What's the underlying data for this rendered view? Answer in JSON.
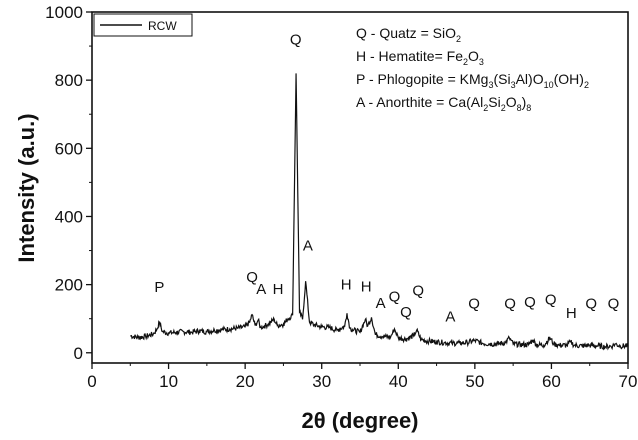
{
  "chart_data": {
    "type": "line",
    "xlabel": "2θ (degree)",
    "ylabel": "Intensity (a.u.)",
    "xlim": [
      0,
      70
    ],
    "ylim": [
      -30,
      1000
    ],
    "xticks": [
      0,
      10,
      20,
      30,
      40,
      50,
      60,
      70
    ],
    "xtick_labels": [
      "0",
      "10",
      "20",
      "30",
      "40",
      "50",
      "60",
      "70"
    ],
    "yticks": [
      0,
      200,
      400,
      600,
      800,
      1000
    ],
    "ytick_labels": [
      "0",
      "200",
      "400",
      "600",
      "800",
      "1000"
    ],
    "grid": false,
    "legend_position": "top-left",
    "line_color": "#111111",
    "series": [
      {
        "name": "RCW",
        "x": [
          5,
          6,
          7,
          8,
          8.5,
          8.8,
          9.2,
          10,
          11,
          12,
          13,
          14,
          15,
          16,
          17,
          18,
          19,
          20,
          20.6,
          20.9,
          21.3,
          21.7,
          22,
          22.5,
          23,
          23.8,
          24.2,
          25,
          25.6,
          26.2,
          26.65,
          27.1,
          27.5,
          27.9,
          28.4,
          29,
          30,
          31,
          32,
          33,
          33.3,
          33.7,
          34,
          35,
          35.7,
          36,
          36.5,
          37,
          38,
          39,
          39.5,
          40,
          41,
          42,
          42.4,
          43,
          44,
          45,
          46,
          47,
          48,
          49,
          50,
          51,
          52,
          53,
          54,
          54.5,
          55,
          56,
          57,
          57.6,
          58,
          59,
          59.8,
          60.3,
          61,
          62,
          62.5,
          63,
          64,
          65,
          66,
          67,
          68,
          68.3,
          69,
          70
        ],
        "y": [
          50,
          45,
          48,
          55,
          70,
          90,
          62,
          58,
          60,
          62,
          60,
          64,
          62,
          66,
          68,
          70,
          72,
          76,
          90,
          112,
          80,
          96,
          74,
          78,
          84,
          98,
          80,
          84,
          100,
          110,
          820,
          120,
          98,
          210,
          90,
          82,
          76,
          74,
          66,
          78,
          116,
          72,
          68,
          60,
          98,
          78,
          104,
          54,
          48,
          46,
          70,
          44,
          40,
          50,
          66,
          38,
          34,
          32,
          30,
          28,
          28,
          30,
          36,
          28,
          26,
          26,
          30,
          44,
          26,
          24,
          24,
          38,
          24,
          22,
          44,
          26,
          22,
          22,
          32,
          22,
          20,
          22,
          20,
          18,
          20,
          26,
          20,
          20
        ]
      }
    ],
    "peak_labels": [
      {
        "text": "P",
        "x": 8.8,
        "y": 178
      },
      {
        "text": "Q",
        "x": 20.9,
        "y": 208
      },
      {
        "text": "A",
        "x": 22.1,
        "y": 172
      },
      {
        "text": "H",
        "x": 24.3,
        "y": 172
      },
      {
        "text": "Q",
        "x": 26.6,
        "y": 904
      },
      {
        "text": "A",
        "x": 28.2,
        "y": 300
      },
      {
        "text": "H",
        "x": 33.2,
        "y": 185
      },
      {
        "text": "H",
        "x": 35.8,
        "y": 180
      },
      {
        "text": "A",
        "x": 37.7,
        "y": 132
      },
      {
        "text": "Q",
        "x": 39.5,
        "y": 150
      },
      {
        "text": "Q",
        "x": 41,
        "y": 105
      },
      {
        "text": "Q",
        "x": 42.6,
        "y": 168
      },
      {
        "text": "A",
        "x": 46.8,
        "y": 92
      },
      {
        "text": "Q",
        "x": 49.9,
        "y": 130
      },
      {
        "text": "Q",
        "x": 54.6,
        "y": 130
      },
      {
        "text": "Q",
        "x": 57.2,
        "y": 135
      },
      {
        "text": "Q",
        "x": 59.9,
        "y": 142
      },
      {
        "text": "H",
        "x": 62.6,
        "y": 102
      },
      {
        "text": "Q",
        "x": 65.2,
        "y": 130
      },
      {
        "text": "Q",
        "x": 68.1,
        "y": 130
      }
    ]
  },
  "legend": {
    "entries": [
      {
        "label": "RCW"
      }
    ]
  },
  "phase_key": {
    "lines": [
      {
        "parts": [
          {
            "t": "Q - Quatz = SiO",
            "s": "normal"
          },
          {
            "t": "2",
            "s": "sub"
          }
        ]
      },
      {
        "parts": [
          {
            "t": "H - Hematite= Fe",
            "s": "normal"
          },
          {
            "t": "2",
            "s": "sub"
          },
          {
            "t": "O",
            "s": "normal"
          },
          {
            "t": "3",
            "s": "sub"
          }
        ]
      },
      {
        "parts": [
          {
            "t": "P - Phlogopite = KMg",
            "s": "normal"
          },
          {
            "t": "3",
            "s": "sub"
          },
          {
            "t": "(Si",
            "s": "normal"
          },
          {
            "t": "3",
            "s": "sub"
          },
          {
            "t": "Al)O",
            "s": "normal"
          },
          {
            "t": "10",
            "s": "sub"
          },
          {
            "t": "(OH)",
            "s": "normal"
          },
          {
            "t": "2",
            "s": "sub"
          }
        ]
      },
      {
        "parts": [
          {
            "t": "A - Anorthite = Ca(Al",
            "s": "normal"
          },
          {
            "t": "2",
            "s": "sub"
          },
          {
            "t": "Si",
            "s": "normal"
          },
          {
            "t": "2",
            "s": "sub"
          },
          {
            "t": "O",
            "s": "normal"
          },
          {
            "t": "8",
            "s": "sub"
          },
          {
            "t": ")",
            "s": "normal"
          },
          {
            "t": "8",
            "s": "sub"
          }
        ]
      }
    ]
  }
}
